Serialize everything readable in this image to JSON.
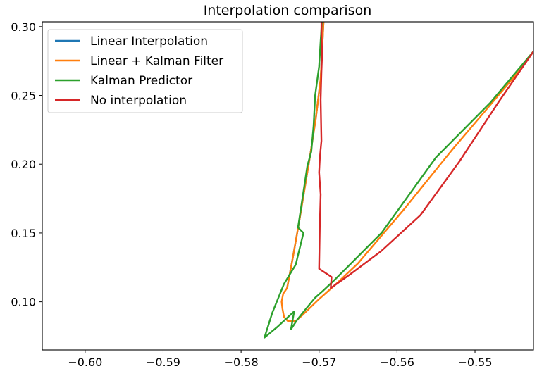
{
  "chart_data": {
    "type": "line",
    "title": "Interpolation comparison",
    "xlabel": "",
    "ylabel": "",
    "xlim": [
      -0.6055,
      -0.5425
    ],
    "ylim": [
      0.065,
      0.3035
    ],
    "xticks": [
      -0.6,
      -0.59,
      -0.58,
      -0.57,
      -0.56,
      -0.55
    ],
    "xtick_labels": [
      "−0.60",
      "−0.59",
      "−0.58",
      "−0.57",
      "−0.56",
      "−0.55"
    ],
    "yticks": [
      0.1,
      0.15,
      0.2,
      0.25,
      0.3
    ],
    "ytick_labels": [
      "0.10",
      "0.15",
      "0.20",
      "0.25",
      "0.30"
    ],
    "grid": false,
    "legend": "top-left",
    "series": [
      {
        "name": "Linear Interpolation",
        "color": "#1f77b4",
        "x": [
          -0.5741,
          -0.5733,
          -0.5725,
          -0.5718,
          -0.5711,
          -0.5704,
          -0.5698,
          -0.5696,
          -0.5694
        ],
        "y": [
          0.11,
          0.134,
          0.16,
          0.184,
          0.208,
          0.234,
          0.262,
          0.284,
          0.307
        ]
      },
      {
        "name": "Linear + Kalman Filter",
        "color": "#ff7f0e",
        "x": [
          -0.5425,
          -0.544,
          -0.547,
          -0.55,
          -0.553,
          -0.556,
          -0.559,
          -0.562,
          -0.565,
          -0.568,
          -0.57,
          -0.572,
          -0.573,
          -0.574,
          -0.5745,
          -0.5747,
          -0.5748,
          -0.5746,
          -0.5741,
          -0.5733,
          -0.5725,
          -0.5718,
          -0.5711,
          -0.5704,
          -0.5698,
          -0.5696,
          -0.5694
        ],
        "y": [
          0.282,
          0.27,
          0.25,
          0.23,
          0.21,
          0.189,
          0.168,
          0.148,
          0.128,
          0.112,
          0.102,
          0.091,
          0.086,
          0.086,
          0.089,
          0.095,
          0.1,
          0.106,
          0.11,
          0.134,
          0.16,
          0.184,
          0.208,
          0.234,
          0.262,
          0.284,
          0.307
        ]
      },
      {
        "name": "Kalman Predictor",
        "color": "#2ca02c",
        "x": [
          -0.5425,
          -0.548,
          -0.555,
          -0.562,
          -0.568,
          -0.5695,
          -0.5705,
          -0.5718,
          -0.5728,
          -0.5736,
          -0.5732,
          -0.5753,
          -0.577,
          -0.576,
          -0.5745,
          -0.573,
          -0.572,
          -0.5727,
          -0.5715,
          -0.571,
          -0.5707,
          -0.5705,
          -0.57,
          -0.5698,
          -0.5696
        ],
        "y": [
          0.282,
          0.245,
          0.205,
          0.15,
          0.116,
          0.108,
          0.103,
          0.094,
          0.087,
          0.08,
          0.093,
          0.082,
          0.074,
          0.092,
          0.113,
          0.127,
          0.15,
          0.154,
          0.199,
          0.209,
          0.228,
          0.25,
          0.271,
          0.29,
          0.307
        ]
      },
      {
        "name": "No interpolation",
        "color": "#d62728",
        "x": [
          -0.5425,
          -0.547,
          -0.552,
          -0.557,
          -0.562,
          -0.566,
          -0.5685,
          -0.5684,
          -0.57,
          -0.5699,
          -0.5698,
          -0.57,
          -0.5699,
          -0.5697,
          -0.5698,
          -0.5697,
          -0.5696,
          -0.5697,
          -0.5697
        ],
        "y": [
          0.282,
          0.245,
          0.202,
          0.163,
          0.137,
          0.12,
          0.11,
          0.118,
          0.124,
          0.158,
          0.178,
          0.194,
          0.205,
          0.217,
          0.247,
          0.267,
          0.281,
          0.293,
          0.307
        ]
      }
    ]
  }
}
